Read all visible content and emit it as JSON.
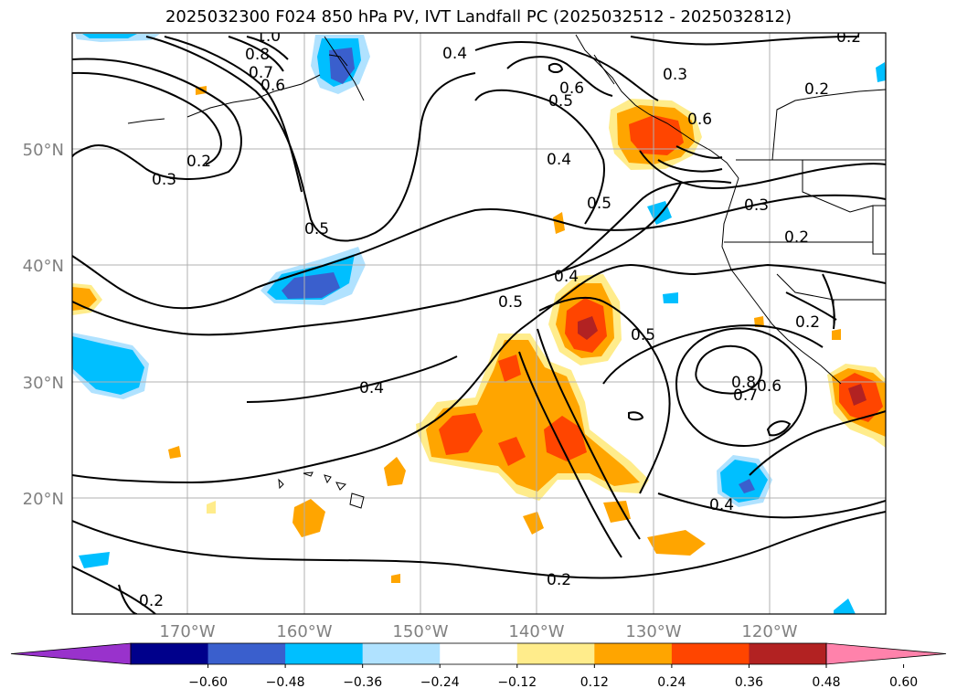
{
  "title": "2025032300 F024 850 hPa PV, IVT Landfall PC (2025032512 - 2025032812)",
  "lon_labels": [
    "170°W",
    "160°W",
    "150°W",
    "140°W",
    "130°W",
    "120°W"
  ],
  "lat_labels": [
    "50°N",
    "40°N",
    "30°N",
    "20°N"
  ],
  "colorbar": {
    "ticks": [
      "−0.60",
      "−0.48",
      "−0.36",
      "−0.24",
      "−0.12",
      "0.12",
      "0.24",
      "0.36",
      "0.48",
      "0.60"
    ],
    "colors": [
      "#9932cc",
      "#00008b",
      "#3a5fcd",
      "#00bfff",
      "#b0e2ff",
      "#ffffff",
      "#ffec8b",
      "#ffa500",
      "#ff4500",
      "#b22222",
      "#ff82ab"
    ]
  },
  "contour_labels": {
    "l1": "1.0",
    "l2": "0.8",
    "l3": "0.7",
    "l4": "0.6",
    "l5": "0.4",
    "l6": "0.2",
    "l7": "0.3",
    "l8": "0.5",
    "l9": "0.6",
    "l10": "0.5",
    "l11": "0.3",
    "l12": "0.6",
    "l13": "0.4",
    "l14": "0.5",
    "l15": "0.2",
    "l16": "0.3",
    "l17": "0.2",
    "l18": "0.4",
    "l19": "0.5",
    "l20": "0.5",
    "l21": "0.2",
    "l22": "0.4",
    "l23": "0.8",
    "l24": "0.6",
    "l25": "0.4",
    "l26": "0.2",
    "l27": "0.2",
    "l28": "0.2",
    "l29": "0.7"
  }
}
